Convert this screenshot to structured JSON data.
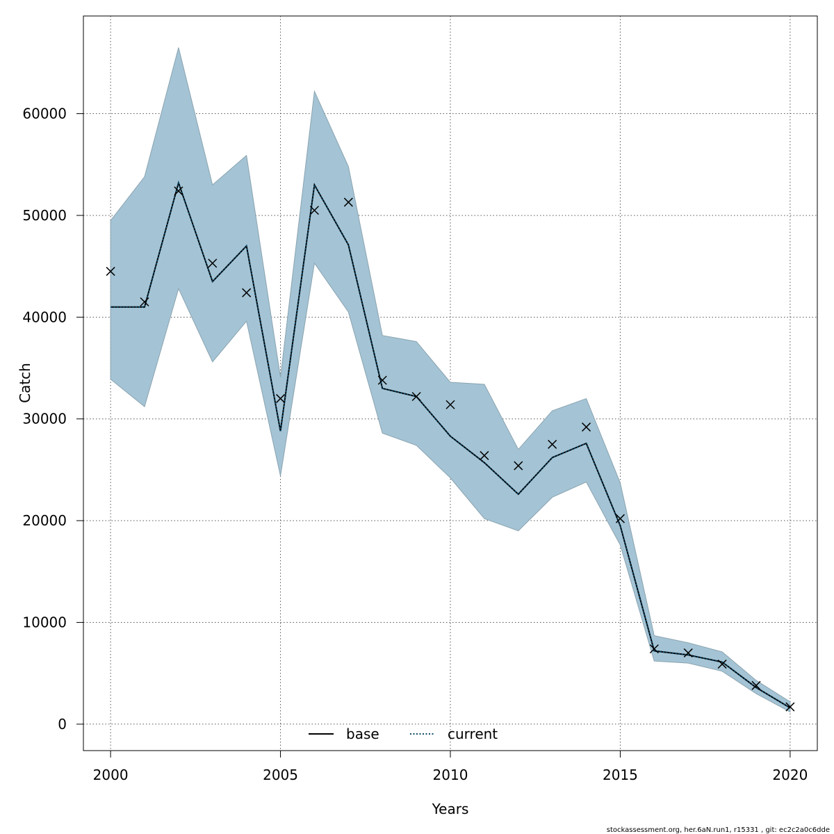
{
  "chart_data": {
    "type": "line",
    "xlabel": "Years",
    "ylabel": "Catch",
    "xlim": [
      1999.2,
      2020.8
    ],
    "ylim": [
      -2600,
      69600
    ],
    "x_ticks": [
      2000,
      2005,
      2010,
      2015,
      2020
    ],
    "y_ticks": [
      0,
      10000,
      20000,
      30000,
      40000,
      50000,
      60000
    ],
    "grid": true,
    "legend_position": "bottom-center",
    "x": [
      2000,
      2001,
      2002,
      2003,
      2004,
      2005,
      2006,
      2007,
      2008,
      2009,
      2010,
      2011,
      2012,
      2013,
      2014,
      2015,
      2016,
      2017,
      2018,
      2019,
      2020
    ],
    "band": {
      "upper": [
        49500,
        53800,
        66500,
        53000,
        55900,
        34100,
        62200,
        54800,
        38200,
        37600,
        33600,
        33400,
        27000,
        30800,
        32000,
        23700,
        8700,
        8000,
        7100,
        4300,
        2200
      ],
      "lower": [
        33900,
        31200,
        42800,
        35600,
        39600,
        24400,
        45300,
        40500,
        28600,
        27400,
        24200,
        20200,
        19000,
        22300,
        23800,
        17600,
        6200,
        6000,
        5200,
        3000,
        1200
      ],
      "color": "#a4c4d5",
      "edge_color": "#8aa3b0"
    },
    "series": [
      {
        "name": "base",
        "values": [
          41000,
          41000,
          53200,
          43500,
          47000,
          28800,
          53000,
          47100,
          33000,
          32200,
          28300,
          25700,
          22600,
          26200,
          27600,
          19500,
          7200,
          6800,
          6100,
          3600,
          1600
        ],
        "color": "#000000",
        "style": "solid"
      },
      {
        "name": "current",
        "values": [
          41000,
          41000,
          53200,
          43500,
          47000,
          28800,
          53000,
          47100,
          33000,
          32200,
          28300,
          25700,
          22600,
          26200,
          27600,
          19500,
          7200,
          6800,
          6100,
          3600,
          1600
        ],
        "color": "#0d4a6b",
        "style": "dotted"
      }
    ],
    "observations": {
      "marker": "x",
      "values": [
        44500,
        41500,
        52400,
        45300,
        42400,
        32000,
        50500,
        51300,
        33800,
        32200,
        31400,
        26400,
        25400,
        27500,
        29200,
        20200,
        7400,
        7000,
        5900,
        3800,
        1700
      ]
    }
  },
  "footer": "stockassessment.org, her.6aN.run1, r15331 , git: ec2c2a0c6dde"
}
